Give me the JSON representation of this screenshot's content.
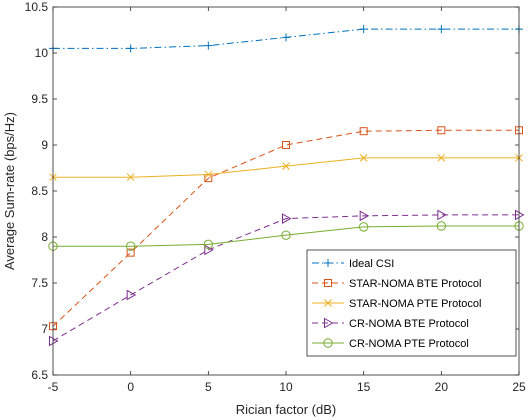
{
  "chart_data": {
    "type": "line",
    "title": "",
    "xlabel": "Rician factor (dB)",
    "ylabel": "Average Sum-rate (bps/Hz)",
    "x": [
      -5,
      0,
      5,
      10,
      15,
      20,
      25
    ],
    "xlim": [
      -5,
      25
    ],
    "ylim": [
      6.5,
      10.5
    ],
    "xticks": [
      "-5",
      "0",
      "5",
      "10",
      "15",
      "20",
      "25"
    ],
    "yticks": [
      "6.5",
      "7",
      "7.5",
      "8",
      "8.5",
      "9",
      "9.5",
      "10",
      "10.5"
    ],
    "grid": false,
    "legend_position": "bottom-right",
    "series": [
      {
        "name": "Ideal CSI",
        "color": "#0072BD",
        "marker": "plus",
        "dash": "dashdot",
        "values": [
          10.05,
          10.05,
          10.08,
          10.17,
          10.26,
          10.26,
          10.26
        ]
      },
      {
        "name": "STAR-NOMA BTE Protocol",
        "color": "#D95319",
        "marker": "square",
        "dash": "dashed",
        "values": [
          7.03,
          7.83,
          8.64,
          9.0,
          9.15,
          9.16,
          9.16
        ]
      },
      {
        "name": "STAR-NOMA PTE Protocol",
        "color": "#EDB120",
        "marker": "x",
        "dash": "solid",
        "values": [
          8.65,
          8.65,
          8.68,
          8.77,
          8.86,
          8.86,
          8.86
        ]
      },
      {
        "name": "CR-NOMA BTE Protocol",
        "color": "#7E2F8E",
        "marker": "triangle-right",
        "dash": "dashed",
        "values": [
          6.87,
          7.37,
          7.86,
          8.2,
          8.23,
          8.24,
          8.24
        ]
      },
      {
        "name": "CR-NOMA PTE Protocol",
        "color": "#77AC30",
        "marker": "circle",
        "dash": "solid",
        "values": [
          7.9,
          7.9,
          7.92,
          8.02,
          8.11,
          8.12,
          8.12
        ]
      }
    ]
  }
}
